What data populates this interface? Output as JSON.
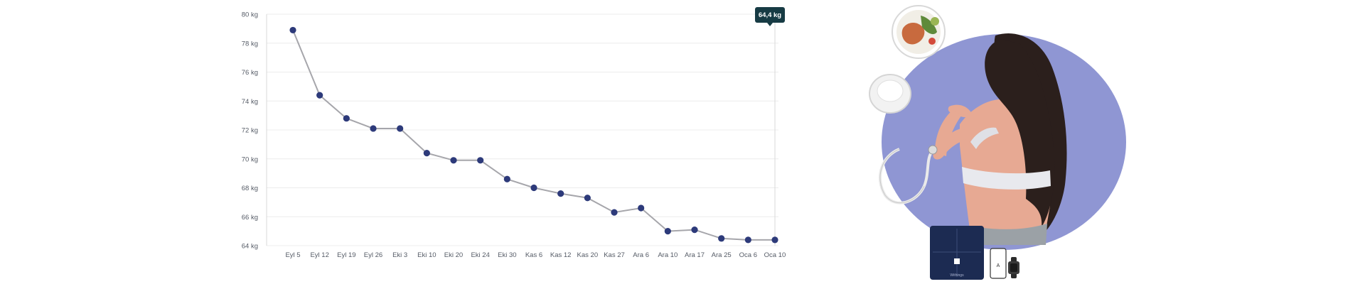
{
  "colors": {
    "point": "#2d3a7a",
    "line": "#a6a6ab",
    "grid": "#ececec",
    "callout_bg": "#173b44",
    "circle_bg": "#8f96d3",
    "skin": "#e7a993",
    "hair": "#2b1f1c",
    "scale_dark": "#1c2b52"
  },
  "callout": {
    "text": "64,4 kg"
  },
  "illustration": {
    "scale_brand": "Withings",
    "phone_letter": "A"
  },
  "chart_data": {
    "type": "line",
    "title": "",
    "xlabel": "",
    "ylabel": "",
    "ylim": [
      64,
      80
    ],
    "grid": true,
    "y_tick_values": [
      64,
      66,
      68,
      70,
      72,
      74,
      76,
      78,
      80
    ],
    "y_tick_labels": [
      "64 kg",
      "66 kg",
      "68 kg",
      "70 kg",
      "72 kg",
      "74 kg",
      "76 kg",
      "78 kg",
      "80 kg"
    ],
    "categories": [
      "Eyl 5",
      "Eyl 12",
      "Eyl 19",
      "Eyl 26",
      "Eki 3",
      "Eki 10",
      "Eki 20",
      "Eki 24",
      "Eki 30",
      "Kas 6",
      "Kas 12",
      "Kas 20",
      "Kas 27",
      "Ara 6",
      "Ara 10",
      "Ara 17",
      "Ara 25",
      "Oca 6",
      "Oca 10"
    ],
    "series": [
      {
        "values": [
          78.9,
          74.4,
          72.8,
          72.1,
          72.1,
          70.4,
          69.9,
          69.9,
          68.6,
          68.0,
          67.6,
          67.3,
          66.3,
          66.6,
          65.0,
          65.1,
          64.5,
          64.4,
          64.4
        ]
      }
    ],
    "annotations": [
      {
        "category": "Oca 10",
        "text": "64,4 kg"
      }
    ]
  }
}
